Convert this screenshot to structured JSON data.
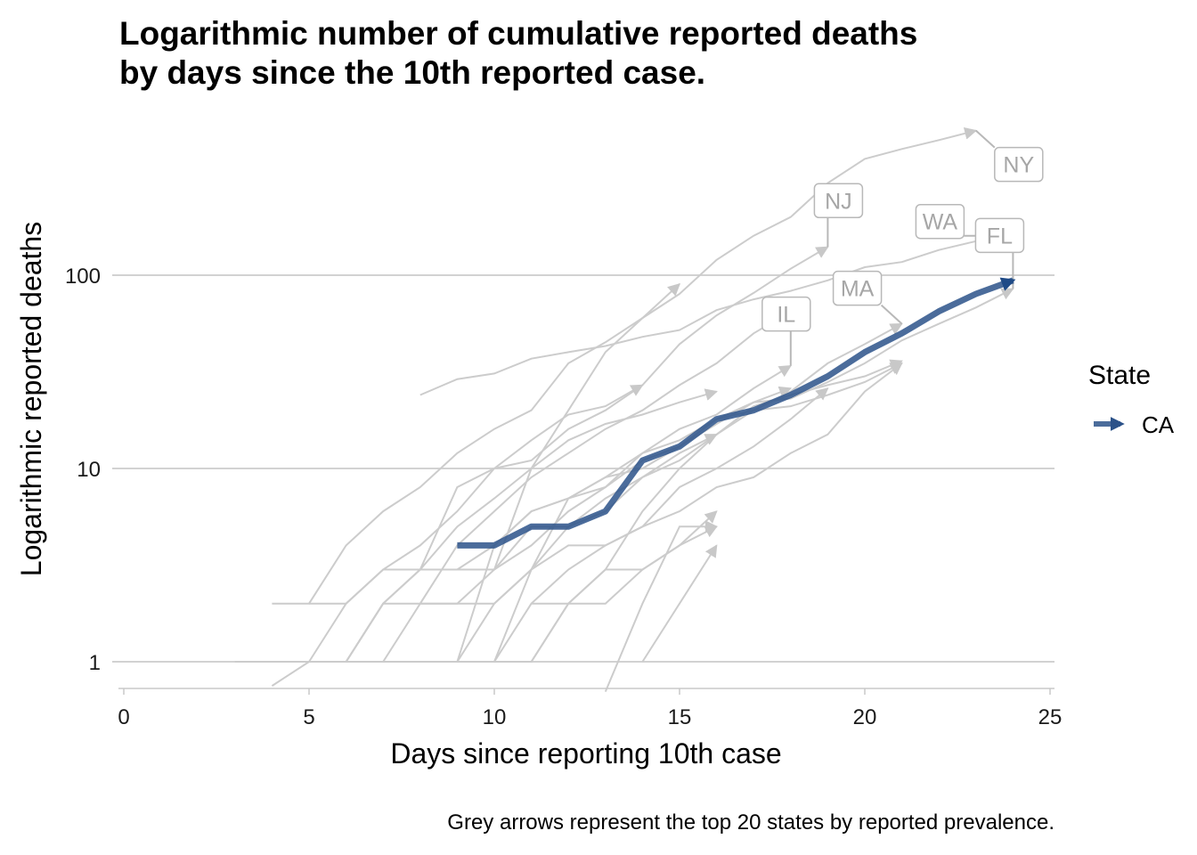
{
  "title_lines": [
    "Logarithmic number of cumulative reported deaths",
    "by days since the 10th reported case."
  ],
  "caption": "Grey arrows represent the top 20 states by reported prevalence.",
  "chart_data": {
    "type": "line",
    "xlabel": "Days since reporting 10th case",
    "ylabel": "Logarithmic reported deaths",
    "x_scale": "linear",
    "y_scale": "log10",
    "xlim": [
      0,
      25
    ],
    "ylim": [
      0.8,
      900
    ],
    "x_ticks": [
      0,
      5,
      10,
      15,
      20,
      25
    ],
    "x_tick_labels": [
      "0",
      "5",
      "10",
      "15",
      "20",
      "25"
    ],
    "y_ticks": [
      1,
      10,
      100
    ],
    "y_tick_labels": [
      "1",
      "10",
      "100"
    ],
    "grid": "horizontal major lines",
    "legend": {
      "title": "State",
      "position": "right",
      "entries": [
        {
          "name": "CA",
          "color": "#2c5289"
        }
      ]
    },
    "highlight_series": {
      "name": "CA",
      "color": "#2c5289",
      "points": [
        [
          9,
          4
        ],
        [
          10,
          4
        ],
        [
          11,
          5
        ],
        [
          12,
          5
        ],
        [
          13,
          6
        ],
        [
          14,
          11
        ],
        [
          15,
          13
        ],
        [
          16,
          18
        ],
        [
          17,
          20
        ],
        [
          18,
          24
        ],
        [
          19,
          30
        ],
        [
          20,
          40
        ],
        [
          21,
          50
        ],
        [
          22,
          65
        ],
        [
          23,
          80
        ],
        [
          24,
          94
        ]
      ]
    },
    "background_color": "#cccccc",
    "background_series": [
      {
        "name": "NY",
        "label": "NY",
        "points": [
          [
            10,
            3
          ],
          [
            11,
            10
          ],
          [
            12,
            20
          ],
          [
            13,
            40
          ],
          [
            14,
            60
          ],
          [
            15,
            80
          ],
          [
            16,
            120
          ],
          [
            17,
            160
          ],
          [
            18,
            200
          ],
          [
            19,
            300
          ],
          [
            20,
            400
          ],
          [
            21,
            450
          ],
          [
            22,
            500
          ],
          [
            23,
            560
          ]
        ]
      },
      {
        "name": "WA",
        "label": "WA",
        "points": [
          [
            8,
            24
          ],
          [
            9,
            29
          ],
          [
            10,
            31
          ],
          [
            11,
            37
          ],
          [
            12,
            40
          ],
          [
            13,
            43
          ],
          [
            14,
            48
          ],
          [
            15,
            52
          ],
          [
            16,
            66
          ],
          [
            17,
            75
          ],
          [
            18,
            83
          ],
          [
            19,
            94
          ],
          [
            20,
            110
          ],
          [
            21,
            117
          ],
          [
            22,
            135
          ],
          [
            23,
            150
          ],
          [
            24,
            160
          ]
        ]
      },
      {
        "name": "NJ",
        "label": "NJ",
        "points": [
          [
            5,
            1
          ],
          [
            6,
            2
          ],
          [
            7,
            3
          ],
          [
            8,
            3
          ],
          [
            9,
            8
          ],
          [
            10,
            10
          ],
          [
            11,
            11
          ],
          [
            12,
            16
          ],
          [
            13,
            20
          ],
          [
            14,
            27
          ],
          [
            15,
            44
          ],
          [
            16,
            62
          ],
          [
            17,
            81
          ],
          [
            18,
            108
          ],
          [
            19,
            140
          ]
        ]
      },
      {
        "name": "IL",
        "label": "IL",
        "points": [
          [
            6,
            1
          ],
          [
            7,
            2
          ],
          [
            8,
            3
          ],
          [
            9,
            3
          ],
          [
            10,
            4
          ],
          [
            11,
            6
          ],
          [
            12,
            7
          ],
          [
            13,
            9
          ],
          [
            14,
            12
          ],
          [
            15,
            16
          ],
          [
            16,
            19
          ],
          [
            17,
            26
          ],
          [
            18,
            34
          ]
        ]
      },
      {
        "name": "MA",
        "label": "MA",
        "points": [
          [
            6,
            1
          ],
          [
            7,
            1
          ],
          [
            8,
            1
          ],
          [
            9,
            1
          ],
          [
            10,
            2
          ],
          [
            11,
            3
          ],
          [
            12,
            5
          ],
          [
            13,
            6
          ],
          [
            14,
            9
          ],
          [
            15,
            11
          ],
          [
            16,
            15
          ],
          [
            17,
            20
          ],
          [
            18,
            25
          ],
          [
            19,
            35
          ],
          [
            20,
            44
          ],
          [
            21,
            56
          ]
        ]
      },
      {
        "name": "FL",
        "label": "FL",
        "points": [
          [
            8,
            2
          ],
          [
            9,
            2
          ],
          [
            10,
            2
          ],
          [
            11,
            3
          ],
          [
            12,
            7
          ],
          [
            13,
            9
          ],
          [
            14,
            10
          ],
          [
            15,
            13
          ],
          [
            16,
            17
          ],
          [
            17,
            22
          ],
          [
            18,
            23
          ],
          [
            19,
            28
          ],
          [
            20,
            35
          ],
          [
            21,
            46
          ],
          [
            22,
            56
          ],
          [
            23,
            68
          ],
          [
            24,
            85
          ]
        ]
      },
      {
        "points": [
          [
            3,
            1
          ],
          [
            4,
            1
          ],
          [
            5,
            1
          ],
          [
            6,
            1
          ],
          [
            7,
            1
          ],
          [
            8,
            1
          ],
          [
            9,
            1
          ],
          [
            10,
            4
          ],
          [
            11,
            6
          ],
          [
            12,
            7
          ],
          [
            13,
            8
          ],
          [
            14,
            12
          ],
          [
            15,
            14
          ],
          [
            16,
            18
          ],
          [
            17,
            20
          ],
          [
            18,
            21
          ],
          [
            19,
            24
          ],
          [
            20,
            28
          ],
          [
            21,
            35
          ]
        ]
      },
      {
        "points": [
          [
            4,
            2
          ],
          [
            5,
            2
          ],
          [
            6,
            4
          ],
          [
            7,
            6
          ],
          [
            8,
            8
          ],
          [
            9,
            12
          ],
          [
            10,
            16
          ],
          [
            11,
            20
          ],
          [
            12,
            35
          ],
          [
            13,
            45
          ],
          [
            14,
            60
          ],
          [
            15,
            90
          ]
        ]
      },
      {
        "points": [
          [
            5,
            2
          ],
          [
            6,
            2
          ],
          [
            7,
            3
          ],
          [
            8,
            4
          ],
          [
            9,
            6
          ],
          [
            10,
            10
          ],
          [
            11,
            14
          ],
          [
            12,
            19
          ],
          [
            13,
            21
          ],
          [
            14,
            27
          ]
        ]
      },
      {
        "points": [
          [
            6,
            1
          ],
          [
            7,
            2
          ],
          [
            8,
            2
          ],
          [
            9,
            4
          ],
          [
            10,
            6
          ],
          [
            11,
            9
          ],
          [
            12,
            12
          ],
          [
            13,
            16
          ],
          [
            14,
            20
          ],
          [
            15,
            27
          ],
          [
            16,
            35
          ],
          [
            17,
            50
          ],
          [
            18,
            65
          ]
        ]
      },
      {
        "points": [
          [
            7,
            1
          ],
          [
            8,
            2
          ],
          [
            9,
            2
          ],
          [
            10,
            3
          ],
          [
            11,
            4
          ],
          [
            12,
            6
          ],
          [
            13,
            8
          ],
          [
            14,
            11
          ],
          [
            15,
            13
          ],
          [
            16,
            18
          ],
          [
            17,
            22
          ],
          [
            18,
            26
          ]
        ]
      },
      {
        "points": [
          [
            8,
            1
          ],
          [
            9,
            1
          ],
          [
            10,
            1
          ],
          [
            11,
            3
          ],
          [
            12,
            4
          ],
          [
            13,
            4
          ],
          [
            14,
            5
          ],
          [
            15,
            6
          ],
          [
            16,
            8
          ],
          [
            17,
            9
          ],
          [
            18,
            12
          ],
          [
            19,
            15
          ],
          [
            20,
            25
          ],
          [
            21,
            35
          ]
        ]
      },
      {
        "points": [
          [
            9,
            1
          ],
          [
            10,
            1
          ],
          [
            11,
            2
          ],
          [
            12,
            3
          ],
          [
            13,
            4
          ],
          [
            14,
            5
          ],
          [
            15,
            8
          ],
          [
            16,
            10
          ],
          [
            17,
            13
          ],
          [
            18,
            18
          ],
          [
            19,
            26
          ]
        ]
      },
      {
        "points": [
          [
            10,
            1
          ],
          [
            11,
            1
          ],
          [
            12,
            2
          ],
          [
            13,
            3
          ],
          [
            14,
            6
          ],
          [
            15,
            10
          ],
          [
            16,
            15
          ],
          [
            17,
            21
          ],
          [
            18,
            24
          ],
          [
            19,
            27
          ],
          [
            20,
            30
          ],
          [
            21,
            36
          ]
        ]
      },
      {
        "points": [
          [
            11,
            2
          ],
          [
            12,
            2
          ],
          [
            13,
            2
          ],
          [
            14,
            3
          ],
          [
            15,
            4
          ],
          [
            16,
            6
          ]
        ]
      },
      {
        "points": [
          [
            9,
            3
          ],
          [
            10,
            3
          ],
          [
            11,
            5
          ],
          [
            12,
            5
          ],
          [
            13,
            7
          ],
          [
            14,
            9
          ],
          [
            15,
            12
          ],
          [
            16,
            15
          ]
        ]
      },
      {
        "points": [
          [
            11,
            1
          ],
          [
            12,
            2
          ],
          [
            13,
            3
          ],
          [
            14,
            3
          ],
          [
            15,
            4
          ],
          [
            16,
            5
          ]
        ]
      },
      {
        "points": [
          [
            13,
            0.7
          ],
          [
            14,
            2
          ],
          [
            15,
            5
          ],
          [
            16,
            5
          ]
        ]
      },
      {
        "points": [
          [
            14,
            1
          ],
          [
            15,
            2
          ],
          [
            16,
            4
          ]
        ]
      },
      {
        "points": [
          [
            4,
            0.75
          ],
          [
            5,
            1
          ],
          [
            6,
            1
          ],
          [
            7,
            2
          ],
          [
            8,
            3
          ],
          [
            9,
            5
          ],
          [
            10,
            7
          ],
          [
            11,
            10
          ],
          [
            12,
            14
          ],
          [
            13,
            17
          ],
          [
            14,
            19
          ],
          [
            15,
            22
          ],
          [
            16,
            25
          ]
        ]
      }
    ]
  }
}
